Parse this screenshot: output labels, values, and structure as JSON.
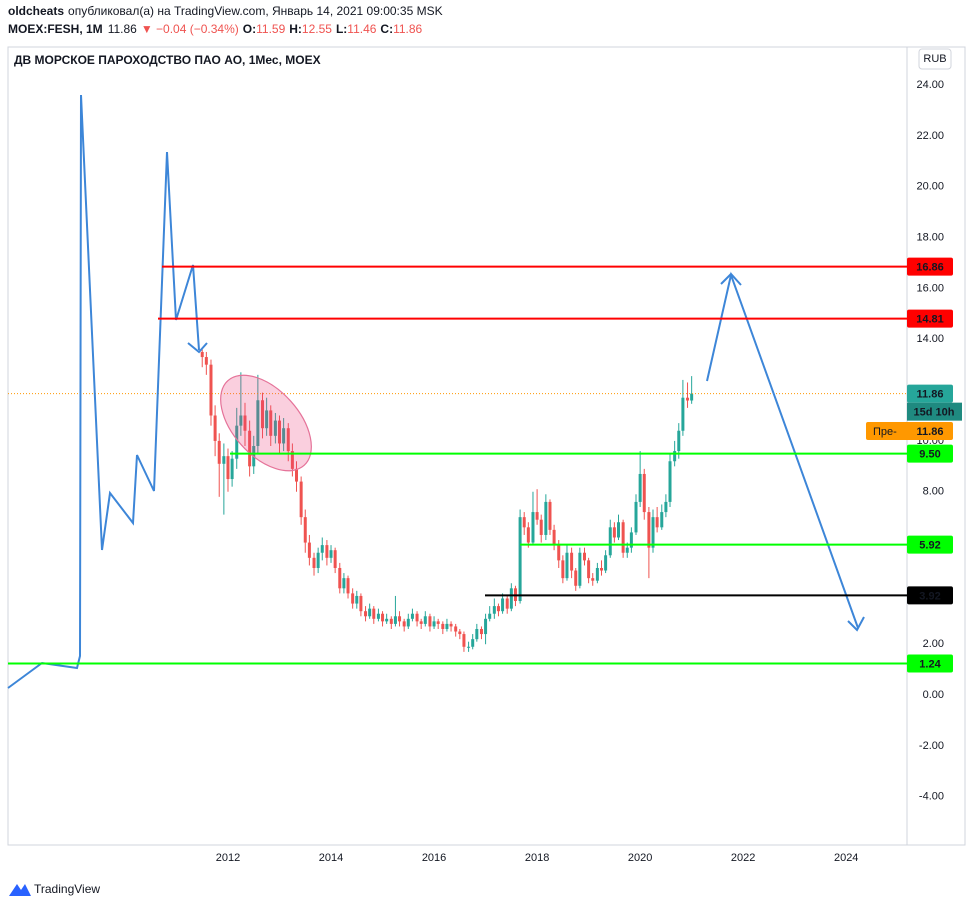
{
  "header": {
    "author": "oldcheats",
    "published": "опубликовал(а) на TradingView.com, Январь 14, 2021 09:00:35 MSK",
    "symbol": "MOEX:FESH, 1M",
    "last": 11.86,
    "change": "▼ −0.04 (−0.34%)",
    "ohlc_labels": [
      "O:",
      "H:",
      "L:",
      "C:"
    ],
    "ohlc_values": [
      11.59,
      12.55,
      11.46,
      11.86
    ]
  },
  "footer": {
    "brand": "TradingView"
  },
  "chart_data": {
    "type": "candlestick",
    "title": "ДВ МОРСКОЕ ПАРОХОДСТВО ПАО АО, 1Мес, MOEX",
    "currency": "RUB",
    "up_color": "#26a69a",
    "down_color": "#ef5350",
    "x": [
      2011.5,
      2011.58,
      2011.67,
      2011.75,
      2011.83,
      2011.92,
      2012,
      2012.08,
      2012.17,
      2012.25,
      2012.33,
      2012.42,
      2012.5,
      2012.58,
      2012.67,
      2012.75,
      2012.83,
      2012.92,
      2013,
      2013.08,
      2013.17,
      2013.25,
      2013.33,
      2013.42,
      2013.5,
      2013.58,
      2013.67,
      2013.75,
      2013.83,
      2013.92,
      2014,
      2014.08,
      2014.17,
      2014.25,
      2014.33,
      2014.42,
      2014.5,
      2014.58,
      2014.67,
      2014.75,
      2014.83,
      2014.92,
      2015,
      2015.08,
      2015.17,
      2015.25,
      2015.33,
      2015.42,
      2015.5,
      2015.58,
      2015.67,
      2015.75,
      2015.83,
      2015.92,
      2016,
      2016.08,
      2016.17,
      2016.25,
      2016.33,
      2016.42,
      2016.5,
      2016.58,
      2016.67,
      2016.75,
      2016.83,
      2016.92,
      2017,
      2017.08,
      2017.17,
      2017.25,
      2017.33,
      2017.42,
      2017.5,
      2017.58,
      2017.67,
      2017.75,
      2017.83,
      2017.92,
      2018,
      2018.08,
      2018.17,
      2018.25,
      2018.33,
      2018.42,
      2018.5,
      2018.58,
      2018.67,
      2018.75,
      2018.83,
      2018.92,
      2019,
      2019.08,
      2019.17,
      2019.25,
      2019.33,
      2019.42,
      2019.5,
      2019.58,
      2019.67,
      2019.75,
      2019.83,
      2019.92,
      2020,
      2020.08,
      2020.17,
      2020.25,
      2020.33,
      2020.42,
      2020.5,
      2020.58,
      2020.67,
      2020.75,
      2020.83,
      2020.92,
      2021
    ],
    "open": [
      13.5,
      13.3,
      13.0,
      11.0,
      10.0,
      9.1,
      9.4,
      8.5,
      9.3,
      10.6,
      11.0,
      10.4,
      9.0,
      9.8,
      11.6,
      10.5,
      11.2,
      10.2,
      10.8,
      9.9,
      10.5,
      9.6,
      8.9,
      8.4,
      7.0,
      6.0,
      5.4,
      5.0,
      5.6,
      5.9,
      5.4,
      5.7,
      5.0,
      4.2,
      4.6,
      4.0,
      3.6,
      3.9,
      3.3,
      3.1,
      3.4,
      3.0,
      3.2,
      2.9,
      3.0,
      2.8,
      3.1,
      2.9,
      2.7,
      3.0,
      3.2,
      2.9,
      2.8,
      3.1,
      2.7,
      2.9,
      2.8,
      2.6,
      2.8,
      2.7,
      2.5,
      2.4,
      1.9,
      1.9,
      2.2,
      2.6,
      2.4,
      3.0,
      3.2,
      3.5,
      3.3,
      3.8,
      3.4,
      4.2,
      3.7,
      7.0,
      6.6,
      6.0,
      7.2,
      6.9,
      6.3,
      7.6,
      6.5,
      5.9,
      5.3,
      4.6,
      5.6,
      4.9,
      4.3,
      5.6,
      5.3,
      4.6,
      4.5,
      5.0,
      4.9,
      5.5,
      6.6,
      6.2,
      6.8,
      5.6,
      5.8,
      6.4,
      7.6,
      8.7,
      7.2,
      5.8,
      7.0,
      6.6,
      7.2,
      7.6,
      9.2,
      9.6,
      10.4,
      11.7,
      11.59
    ],
    "high": [
      13.6,
      13.5,
      13.2,
      11.4,
      10.3,
      9.9,
      9.7,
      9.6,
      11.3,
      12.7,
      11.5,
      10.8,
      10.2,
      12.6,
      11.9,
      11.7,
      11.4,
      11.1,
      11.0,
      10.9,
      10.7,
      9.9,
      9.2,
      8.6,
      7.3,
      6.3,
      5.6,
      5.8,
      6.2,
      6.1,
      5.9,
      5.8,
      5.2,
      4.8,
      4.7,
      4.2,
      4.1,
      4.0,
      3.5,
      3.6,
      3.5,
      3.4,
      3.3,
      3.2,
      3.1,
      3.9,
      3.3,
      3.0,
      3.2,
      3.4,
      3.3,
      3.0,
      3.3,
      3.2,
      3.1,
      3.0,
      2.9,
      3.0,
      2.9,
      2.8,
      2.6,
      2.5,
      2.1,
      2.4,
      2.8,
      2.7,
      3.2,
      3.5,
      3.8,
      3.6,
      4.0,
      3.9,
      4.4,
      4.3,
      7.3,
      7.2,
      6.8,
      8.0,
      8.1,
      7.1,
      7.9,
      7.7,
      6.7,
      6.1,
      5.5,
      5.9,
      5.8,
      5.0,
      5.8,
      5.8,
      5.4,
      4.8,
      5.2,
      5.3,
      5.7,
      6.9,
      6.8,
      7.1,
      6.9,
      6.0,
      6.6,
      7.9,
      9.6,
      8.9,
      7.4,
      7.3,
      7.4,
      7.5,
      7.9,
      9.5,
      10.0,
      10.7,
      12.4,
      12.3,
      12.55
    ],
    "low": [
      12.9,
      12.6,
      10.6,
      9.4,
      7.8,
      7.1,
      8.0,
      8.2,
      8.9,
      10.2,
      9.8,
      8.6,
      8.7,
      9.5,
      10.1,
      10.2,
      9.8,
      9.9,
      9.5,
      9.6,
      9.2,
      8.6,
      8.0,
      6.7,
      5.6,
      5.1,
      4.7,
      4.8,
      5.3,
      5.1,
      5.2,
      4.8,
      4.0,
      4.0,
      3.8,
      3.4,
      3.4,
      3.1,
      2.9,
      3.0,
      2.8,
      2.9,
      2.7,
      2.8,
      2.6,
      2.7,
      2.7,
      2.5,
      2.6,
      2.9,
      2.7,
      2.6,
      2.7,
      2.5,
      2.6,
      2.6,
      2.4,
      2.5,
      2.5,
      2.3,
      2.2,
      1.7,
      1.7,
      1.8,
      2.1,
      2.2,
      2.0,
      2.9,
      3.0,
      3.1,
      3.2,
      3.2,
      3.3,
      3.5,
      3.6,
      6.3,
      5.8,
      5.9,
      6.7,
      6.0,
      6.1,
      6.3,
      5.7,
      5.0,
      4.4,
      4.5,
      4.6,
      4.1,
      4.2,
      5.1,
      4.4,
      4.3,
      4.4,
      4.7,
      4.8,
      5.4,
      6.0,
      6.1,
      5.4,
      5.4,
      5.6,
      6.3,
      7.4,
      6.9,
      4.6,
      5.6,
      6.4,
      6.5,
      7.0,
      7.4,
      9.0,
      9.3,
      10.2,
      11.3,
      11.46
    ],
    "close": [
      13.3,
      13.0,
      11.0,
      10.0,
      9.1,
      9.4,
      8.5,
      9.3,
      10.6,
      11.0,
      10.4,
      9.0,
      9.8,
      11.6,
      10.5,
      11.2,
      10.2,
      10.8,
      9.9,
      10.5,
      9.6,
      8.9,
      8.4,
      7.0,
      6.0,
      5.4,
      5.0,
      5.6,
      5.9,
      5.4,
      5.7,
      5.0,
      4.2,
      4.6,
      4.0,
      3.6,
      3.9,
      3.3,
      3.1,
      3.4,
      3.0,
      3.2,
      2.9,
      3.0,
      2.8,
      3.1,
      2.9,
      2.7,
      3.0,
      3.2,
      2.9,
      2.8,
      3.1,
      2.7,
      2.9,
      2.8,
      2.6,
      2.8,
      2.7,
      2.5,
      2.4,
      1.9,
      1.9,
      2.2,
      2.6,
      2.4,
      3.0,
      3.2,
      3.5,
      3.3,
      3.8,
      3.4,
      4.2,
      3.7,
      7.0,
      6.6,
      6.0,
      7.2,
      6.9,
      6.3,
      7.6,
      6.5,
      5.9,
      5.3,
      4.6,
      5.6,
      4.9,
      4.3,
      5.6,
      5.3,
      4.6,
      4.5,
      5.0,
      4.9,
      5.5,
      6.6,
      6.2,
      6.8,
      5.6,
      5.8,
      6.4,
      7.6,
      8.7,
      7.2,
      5.8,
      7.0,
      6.6,
      7.2,
      7.6,
      9.2,
      9.6,
      10.4,
      11.7,
      11.59,
      11.86
    ],
    "xlim": [
      2007.73,
      2025.18
    ],
    "xticks": [
      2012,
      2014,
      2016,
      2018,
      2020,
      2022,
      2024
    ],
    "ylim": [
      -5.9,
      25.5
    ],
    "yticks": [
      {
        "value": -4,
        "label": "-4.00"
      },
      {
        "value": -2,
        "label": "-2.00"
      },
      {
        "value": 0,
        "label": "0.00"
      },
      {
        "value": 2,
        "label": "2.00"
      },
      {
        "value": 4,
        "label": "4.00"
      },
      {
        "value": 6,
        "label": "6.00"
      },
      {
        "value": 8,
        "label": "8.00"
      },
      {
        "value": 10,
        "label": "10.00"
      },
      {
        "value": 12,
        "label": "12.00"
      },
      {
        "value": 14,
        "label": "14.00"
      },
      {
        "value": 16,
        "label": "16.00"
      },
      {
        "value": 18,
        "label": "18.00"
      },
      {
        "value": 20,
        "label": "20.00"
      },
      {
        "value": 22,
        "label": "22.00"
      },
      {
        "value": 24,
        "label": "24.00"
      }
    ],
    "levels": {
      "values": [
        16.86,
        14.81,
        9.5,
        5.92,
        3.92,
        1.24
      ],
      "value_labels": [
        "16.86",
        "14.81",
        "9.50",
        "5.92",
        "3.92",
        "1.24"
      ],
      "colors": [
        "#ff0000",
        "#ff0000",
        "#00ff00",
        "#00ff00",
        "#000000",
        "#00ff00"
      ]
    },
    "countdown": "15d 10h",
    "premarket": {
      "label": "Пре-",
      "value": 11.86
    }
  }
}
